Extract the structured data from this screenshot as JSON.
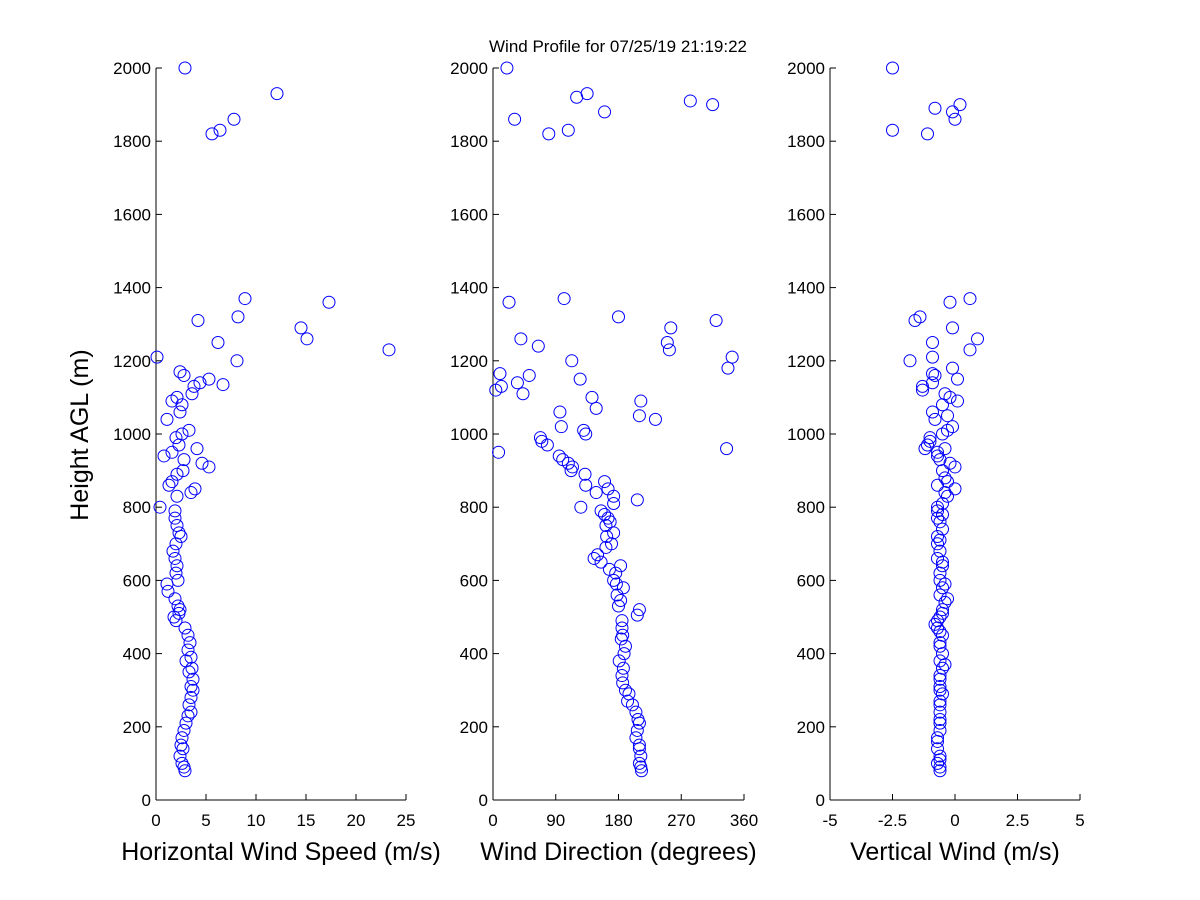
{
  "figure": {
    "title": "Wind Profile for  07/25/19 21:19:22",
    "ylabel": "Height AGL (m)",
    "marker_color": "#0000ff"
  },
  "chart_data": [
    {
      "type": "scatter",
      "xlabel": "Horizontal Wind Speed (m/s)",
      "ylabel": "Height AGL (m)",
      "xlim": [
        0,
        25
      ],
      "ylim": [
        0,
        2000
      ],
      "xticks": [
        "0",
        "5",
        "10",
        "15",
        "20",
        "25"
      ],
      "yticks": [
        "0",
        "200",
        "400",
        "600",
        "800",
        "1000",
        "1200",
        "1400",
        "1600",
        "1800",
        "2000"
      ],
      "grid": false,
      "points": [
        [
          2.9,
          2000
        ],
        [
          12.1,
          1930
        ],
        [
          7.8,
          1860
        ],
        [
          6.4,
          1830
        ],
        [
          5.6,
          1820
        ],
        [
          8.9,
          1370
        ],
        [
          17.3,
          1360
        ],
        [
          8.2,
          1320
        ],
        [
          4.2,
          1310
        ],
        [
          14.5,
          1290
        ],
        [
          15.1,
          1260
        ],
        [
          6.2,
          1250
        ],
        [
          23.3,
          1230
        ],
        [
          0.1,
          1210
        ],
        [
          8.1,
          1200
        ],
        [
          2.4,
          1170
        ],
        [
          2.8,
          1160
        ],
        [
          5.3,
          1150
        ],
        [
          4.4,
          1140
        ],
        [
          6.7,
          1135
        ],
        [
          3.8,
          1130
        ],
        [
          3.6,
          1110
        ],
        [
          2.1,
          1100
        ],
        [
          1.6,
          1090
        ],
        [
          2.6,
          1080
        ],
        [
          2.4,
          1060
        ],
        [
          1.1,
          1040
        ],
        [
          3.3,
          1010
        ],
        [
          2.6,
          1000
        ],
        [
          2.0,
          990
        ],
        [
          2.3,
          970
        ],
        [
          4.1,
          960
        ],
        [
          1.6,
          950
        ],
        [
          0.8,
          940
        ],
        [
          2.8,
          930
        ],
        [
          4.6,
          920
        ],
        [
          5.3,
          910
        ],
        [
          2.7,
          900
        ],
        [
          2.1,
          890
        ],
        [
          1.6,
          870
        ],
        [
          1.3,
          860
        ],
        [
          3.9,
          850
        ],
        [
          3.5,
          840
        ],
        [
          2.1,
          830
        ],
        [
          0.4,
          800
        ],
        [
          1.9,
          790
        ],
        [
          1.9,
          770
        ],
        [
          2.1,
          750
        ],
        [
          2.3,
          730
        ],
        [
          2.5,
          720
        ],
        [
          2.0,
          700
        ],
        [
          1.7,
          680
        ],
        [
          1.9,
          660
        ],
        [
          2.1,
          640
        ],
        [
          2.0,
          620
        ],
        [
          2.2,
          600
        ],
        [
          1.1,
          590
        ],
        [
          1.2,
          570
        ],
        [
          1.9,
          550
        ],
        [
          2.2,
          530
        ],
        [
          2.4,
          520
        ],
        [
          2.3,
          510
        ],
        [
          1.8,
          500
        ],
        [
          2.0,
          490
        ],
        [
          2.9,
          470
        ],
        [
          3.2,
          450
        ],
        [
          3.4,
          430
        ],
        [
          3.2,
          410
        ],
        [
          3.5,
          390
        ],
        [
          3.0,
          380
        ],
        [
          3.6,
          360
        ],
        [
          3.3,
          350
        ],
        [
          3.7,
          330
        ],
        [
          3.5,
          310
        ],
        [
          3.7,
          300
        ],
        [
          3.5,
          280
        ],
        [
          3.3,
          260
        ],
        [
          3.5,
          240
        ],
        [
          3.2,
          230
        ],
        [
          3.0,
          210
        ],
        [
          2.8,
          190
        ],
        [
          2.6,
          170
        ],
        [
          2.5,
          150
        ],
        [
          2.7,
          140
        ],
        [
          2.4,
          120
        ],
        [
          2.6,
          100
        ],
        [
          2.8,
          90
        ],
        [
          2.9,
          80
        ]
      ]
    },
    {
      "type": "scatter",
      "xlabel": "Wind Direction (degrees)",
      "ylabel": "",
      "xlim": [
        0,
        360
      ],
      "ylim": [
        0,
        2000
      ],
      "xticks": [
        "0",
        "90",
        "180",
        "270",
        "360"
      ],
      "yticks": [
        "0",
        "200",
        "400",
        "600",
        "800",
        "1000",
        "1200",
        "1400",
        "1600",
        "1800",
        "2000"
      ],
      "grid": false,
      "points": [
        [
          20,
          2000
        ],
        [
          135,
          1930
        ],
        [
          120,
          1920
        ],
        [
          283,
          1910
        ],
        [
          315,
          1900
        ],
        [
          160,
          1880
        ],
        [
          31,
          1860
        ],
        [
          108,
          1830
        ],
        [
          80,
          1820
        ],
        [
          102,
          1370
        ],
        [
          23,
          1360
        ],
        [
          180,
          1320
        ],
        [
          320,
          1310
        ],
        [
          255,
          1290
        ],
        [
          40,
          1260
        ],
        [
          250,
          1250
        ],
        [
          65,
          1240
        ],
        [
          253,
          1230
        ],
        [
          343,
          1210
        ],
        [
          113,
          1200
        ],
        [
          337,
          1180
        ],
        [
          10,
          1165
        ],
        [
          52,
          1160
        ],
        [
          125,
          1150
        ],
        [
          12,
          1130
        ],
        [
          35,
          1140
        ],
        [
          4,
          1120
        ],
        [
          43,
          1110
        ],
        [
          142,
          1100
        ],
        [
          212,
          1090
        ],
        [
          148,
          1070
        ],
        [
          96,
          1060
        ],
        [
          210,
          1050
        ],
        [
          233,
          1040
        ],
        [
          98,
          1020
        ],
        [
          130,
          1010
        ],
        [
          133,
          1000
        ],
        [
          68,
          990
        ],
        [
          70,
          980
        ],
        [
          78,
          970
        ],
        [
          335,
          960
        ],
        [
          8,
          950
        ],
        [
          95,
          940
        ],
        [
          100,
          930
        ],
        [
          108,
          920
        ],
        [
          114,
          910
        ],
        [
          112,
          900
        ],
        [
          132,
          890
        ],
        [
          160,
          870
        ],
        [
          133,
          860
        ],
        [
          165,
          850
        ],
        [
          148,
          840
        ],
        [
          173,
          830
        ],
        [
          207,
          820
        ],
        [
          173,
          810
        ],
        [
          126,
          800
        ],
        [
          155,
          790
        ],
        [
          160,
          780
        ],
        [
          165,
          770
        ],
        [
          168,
          760
        ],
        [
          162,
          750
        ],
        [
          173,
          730
        ],
        [
          163,
          720
        ],
        [
          170,
          700
        ],
        [
          162,
          690
        ],
        [
          150,
          670
        ],
        [
          145,
          660
        ],
        [
          155,
          650
        ],
        [
          183,
          640
        ],
        [
          167,
          630
        ],
        [
          176,
          620
        ],
        [
          173,
          600
        ],
        [
          177,
          590
        ],
        [
          187,
          580
        ],
        [
          178,
          560
        ],
        [
          183,
          545
        ],
        [
          180,
          530
        ],
        [
          210,
          520
        ],
        [
          207,
          505
        ],
        [
          185,
          490
        ],
        [
          185,
          470
        ],
        [
          186,
          450
        ],
        [
          184,
          440
        ],
        [
          190,
          420
        ],
        [
          188,
          400
        ],
        [
          181,
          380
        ],
        [
          187,
          360
        ],
        [
          185,
          340
        ],
        [
          186,
          320
        ],
        [
          190,
          300
        ],
        [
          195,
          290
        ],
        [
          193,
          270
        ],
        [
          200,
          260
        ],
        [
          205,
          240
        ],
        [
          208,
          220
        ],
        [
          210,
          210
        ],
        [
          207,
          190
        ],
        [
          205,
          170
        ],
        [
          210,
          150
        ],
        [
          210,
          140
        ],
        [
          212,
          120
        ],
        [
          210,
          100
        ],
        [
          212,
          90
        ],
        [
          213,
          80
        ]
      ]
    },
    {
      "type": "scatter",
      "xlabel": "Vertical Wind (m/s)",
      "ylabel": "",
      "xlim": [
        -5,
        5
      ],
      "ylim": [
        0,
        2000
      ],
      "xticks": [
        "-5",
        "-2.5",
        "0",
        "2.5",
        "5"
      ],
      "yticks": [
        "0",
        "200",
        "400",
        "600",
        "800",
        "1000",
        "1200",
        "1400",
        "1600",
        "1800",
        "2000"
      ],
      "grid": false,
      "points": [
        [
          -2.5,
          2000
        ],
        [
          0.2,
          1900
        ],
        [
          -0.8,
          1890
        ],
        [
          -0.1,
          1880
        ],
        [
          0.0,
          1860
        ],
        [
          -2.5,
          1830
        ],
        [
          -1.1,
          1820
        ],
        [
          0.6,
          1370
        ],
        [
          -0.2,
          1360
        ],
        [
          -1.4,
          1320
        ],
        [
          -1.6,
          1310
        ],
        [
          -0.1,
          1290
        ],
        [
          0.9,
          1260
        ],
        [
          -0.9,
          1250
        ],
        [
          0.6,
          1230
        ],
        [
          -0.9,
          1210
        ],
        [
          -1.8,
          1200
        ],
        [
          -0.1,
          1180
        ],
        [
          -0.9,
          1165
        ],
        [
          -0.8,
          1160
        ],
        [
          0.1,
          1150
        ],
        [
          -0.9,
          1140
        ],
        [
          -1.3,
          1130
        ],
        [
          -1.3,
          1120
        ],
        [
          -0.4,
          1110
        ],
        [
          -0.2,
          1100
        ],
        [
          0.1,
          1090
        ],
        [
          -0.5,
          1080
        ],
        [
          -0.9,
          1060
        ],
        [
          -0.3,
          1050
        ],
        [
          -0.8,
          1040
        ],
        [
          -0.1,
          1020
        ],
        [
          -0.3,
          1010
        ],
        [
          -0.5,
          1000
        ],
        [
          -1.0,
          990
        ],
        [
          -1.0,
          980
        ],
        [
          -1.1,
          970
        ],
        [
          -0.4,
          960
        ],
        [
          -1.2,
          960
        ],
        [
          -0.7,
          950
        ],
        [
          -0.7,
          940
        ],
        [
          -0.6,
          930
        ],
        [
          -0.2,
          920
        ],
        [
          0.0,
          910
        ],
        [
          -0.5,
          900
        ],
        [
          -0.4,
          880
        ],
        [
          -0.3,
          870
        ],
        [
          -0.7,
          860
        ],
        [
          0.0,
          850
        ],
        [
          -0.4,
          840
        ],
        [
          -0.3,
          830
        ],
        [
          -0.5,
          810
        ],
        [
          -0.7,
          800
        ],
        [
          -0.7,
          790
        ],
        [
          -0.5,
          780
        ],
        [
          -0.7,
          770
        ],
        [
          -0.6,
          760
        ],
        [
          -0.5,
          740
        ],
        [
          -0.7,
          720
        ],
        [
          -0.6,
          710
        ],
        [
          -0.7,
          700
        ],
        [
          -0.6,
          680
        ],
        [
          -0.7,
          660
        ],
        [
          -0.5,
          650
        ],
        [
          -0.5,
          640
        ],
        [
          -0.6,
          620
        ],
        [
          -0.6,
          600
        ],
        [
          -0.4,
          590
        ],
        [
          -0.5,
          580
        ],
        [
          -0.6,
          560
        ],
        [
          -0.3,
          550
        ],
        [
          -0.4,
          540
        ],
        [
          -0.5,
          520
        ],
        [
          -0.5,
          510
        ],
        [
          -0.6,
          500
        ],
        [
          -0.7,
          490
        ],
        [
          -0.8,
          480
        ],
        [
          -0.7,
          470
        ],
        [
          -0.6,
          460
        ],
        [
          -0.5,
          450
        ],
        [
          -0.6,
          430
        ],
        [
          -0.6,
          420
        ],
        [
          -0.5,
          400
        ],
        [
          -0.6,
          380
        ],
        [
          -0.4,
          370
        ],
        [
          -0.5,
          360
        ],
        [
          -0.6,
          340
        ],
        [
          -0.6,
          330
        ],
        [
          -0.6,
          310
        ],
        [
          -0.6,
          300
        ],
        [
          -0.5,
          290
        ],
        [
          -0.6,
          270
        ],
        [
          -0.6,
          260
        ],
        [
          -0.6,
          240
        ],
        [
          -0.6,
          220
        ],
        [
          -0.6,
          210
        ],
        [
          -0.6,
          190
        ],
        [
          -0.7,
          170
        ],
        [
          -0.7,
          160
        ],
        [
          -0.7,
          140
        ],
        [
          -0.6,
          120
        ],
        [
          -0.6,
          110
        ],
        [
          -0.7,
          100
        ],
        [
          -0.6,
          90
        ],
        [
          -0.6,
          80
        ]
      ]
    }
  ]
}
